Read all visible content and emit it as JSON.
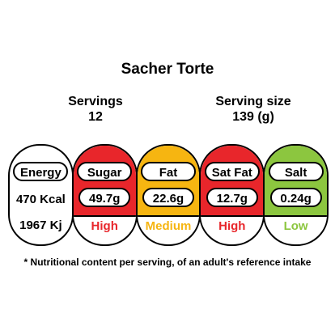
{
  "title": "Sacher Torte",
  "servings": {
    "label": "Servings",
    "value": "12"
  },
  "serving_size": {
    "label": "Serving size",
    "value": "139 (g)"
  },
  "energy": {
    "label": "Energy",
    "kcal": "470 Kcal",
    "kj": "1967 Kj"
  },
  "nutrients": [
    {
      "name": "Sugar",
      "value": "49.7g",
      "level": "High",
      "color": "#e8262b",
      "level_color": "#e8262b"
    },
    {
      "name": "Fat",
      "value": "22.6g",
      "level": "Medium",
      "color": "#f6b511",
      "level_color": "#f6b511"
    },
    {
      "name": "Sat Fat",
      "value": "12.7g",
      "level": "High",
      "color": "#e8262b",
      "level_color": "#e8262b"
    },
    {
      "name": "Salt",
      "value": "0.24g",
      "level": "Low",
      "color": "#8cc63f",
      "level_color": "#8cc63f"
    }
  ],
  "footnote": "* Nutritional content per serving, of an adult's reference intake"
}
